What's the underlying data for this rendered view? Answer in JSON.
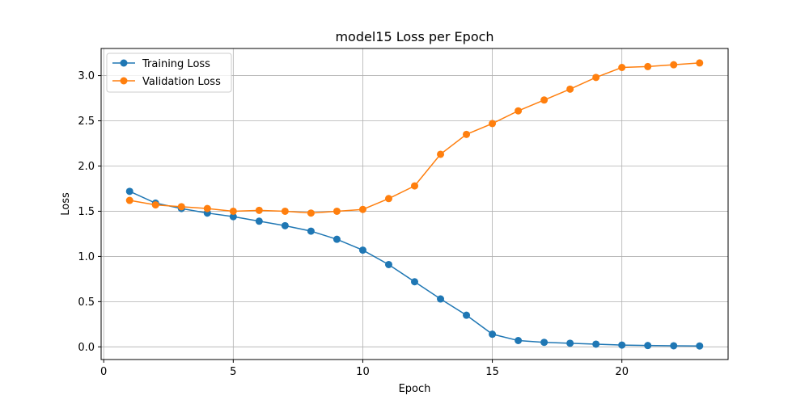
{
  "chart_data": {
    "type": "line",
    "title": "model15 Loss per Epoch",
    "xlabel": "Epoch",
    "ylabel": "Loss",
    "x": [
      1,
      2,
      3,
      4,
      5,
      6,
      7,
      8,
      9,
      10,
      11,
      12,
      13,
      14,
      15,
      16,
      17,
      18,
      19,
      20,
      21,
      22,
      23
    ],
    "xlim": [
      -0.1,
      24.1
    ],
    "ylim": [
      -0.14,
      3.3
    ],
    "xticks": [
      0,
      5,
      10,
      15,
      20
    ],
    "yticks": [
      0.0,
      0.5,
      1.0,
      1.5,
      2.0,
      2.5,
      3.0
    ],
    "xtick_labels": [
      "0",
      "5",
      "10",
      "15",
      "20"
    ],
    "ytick_labels": [
      "0.0",
      "0.5",
      "1.0",
      "1.5",
      "2.0",
      "2.5",
      "3.0"
    ],
    "grid": true,
    "legend_position": "top-left",
    "series": [
      {
        "name": "Training Loss",
        "color": "#1f77b4",
        "marker": "circle",
        "values": [
          1.72,
          1.59,
          1.53,
          1.48,
          1.44,
          1.39,
          1.34,
          1.28,
          1.19,
          1.07,
          0.91,
          0.72,
          0.53,
          0.35,
          0.14,
          0.07,
          0.05,
          0.04,
          0.03,
          0.02,
          0.015,
          0.012,
          0.01
        ]
      },
      {
        "name": "Validation Loss",
        "color": "#ff7f0e",
        "marker": "circle",
        "values": [
          1.62,
          1.57,
          1.55,
          1.53,
          1.5,
          1.51,
          1.5,
          1.48,
          1.5,
          1.52,
          1.64,
          1.78,
          2.13,
          2.35,
          2.47,
          2.61,
          2.73,
          2.85,
          2.98,
          3.09,
          3.1,
          3.12,
          3.14
        ]
      }
    ]
  }
}
